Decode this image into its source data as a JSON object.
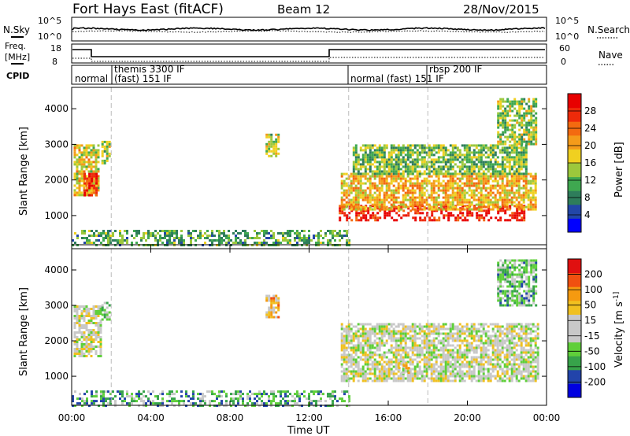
{
  "header": {
    "station": "Fort Hays East (fitACF)",
    "beam": "Beam 12",
    "date": "28/Nov/2015"
  },
  "strips": {
    "nsky_label": "N.Sky",
    "nsky_ticks": [
      "10^5",
      "10^0"
    ],
    "nsearch_label": "N.Search",
    "nsearch_ticks": [
      "10^5",
      "10^0"
    ],
    "freq_label_1": "Freq.",
    "freq_label_2": "[MHz]",
    "freq_ticks": [
      "18",
      "8"
    ],
    "nave_label": "Nave",
    "nave_ticks": [
      "60",
      "0"
    ],
    "cpid_label": "CPID",
    "cpid_segments": [
      {
        "start_h": 0.0,
        "text": "normal"
      },
      {
        "start_h": 2.0,
        "text": "themis 3300 IF"
      },
      {
        "start_h": 2.0,
        "text": "(fast) 151 IF"
      },
      {
        "start_h": 14.0,
        "text": "normal (fast) 151 IF"
      },
      {
        "start_h": 18.0,
        "text": "rbsp 200 IF"
      }
    ]
  },
  "panels": {
    "ylabel": "Slant Range [km]",
    "yticks": [
      "4000",
      "3000",
      "2000",
      "1000"
    ],
    "xlabel": "Time UT",
    "xticks": [
      "00:00",
      "04:00",
      "08:00",
      "12:00",
      "16:00",
      "20:00",
      "00:00"
    ]
  },
  "colors": {
    "power_scale": [
      "#0000ff",
      "#2246a8",
      "#2e7d5b",
      "#3fa850",
      "#9cc83c",
      "#f0d020",
      "#f49b1a",
      "#f36a10",
      "#ee2a0a",
      "#e80000"
    ],
    "velocity_scale": [
      "#0000e0",
      "#2244aa",
      "#37a34a",
      "#5fcf3a",
      "#c8c8c8",
      "#c8c8c8",
      "#f0c020",
      "#f59a10",
      "#f05010",
      "#e01010"
    ],
    "background": "#ffffff"
  },
  "chart_data": [
    {
      "type": "heatmap",
      "quantity": "Power",
      "title": "Fort Hays East (fitACF)",
      "xlabel": "Time UT",
      "ylabel": "Slant Range [km]",
      "xlim": [
        0,
        24
      ],
      "ylim": [
        180,
        4600
      ],
      "colorbar_label": "Power [dB]",
      "colorbar_ticks": [
        "28",
        "24",
        "20",
        "16",
        "12",
        "8",
        "4"
      ],
      "colorbar_range": [
        0,
        32
      ],
      "regions": [
        {
          "t0": 0.1,
          "t1": 1.4,
          "r0": 1600,
          "r1": 3000,
          "level": 0.55
        },
        {
          "t0": 0.6,
          "t1": 1.3,
          "r0": 1600,
          "r1": 2200,
          "level": 0.85
        },
        {
          "t0": 1.5,
          "t1": 1.9,
          "r0": 2500,
          "r1": 3100,
          "level": 0.45
        },
        {
          "t0": 9.8,
          "t1": 10.5,
          "r0": 2700,
          "r1": 3300,
          "level": 0.45
        },
        {
          "t0": 13.5,
          "t1": 22.9,
          "r0": 900,
          "r1": 1300,
          "level": 0.92
        },
        {
          "t0": 13.6,
          "t1": 23.5,
          "r0": 1200,
          "r1": 2200,
          "level": 0.6
        },
        {
          "t0": 14.2,
          "t1": 23.0,
          "r0": 2200,
          "r1": 3000,
          "level": 0.4
        },
        {
          "t0": 21.5,
          "t1": 23.5,
          "r0": 3000,
          "r1": 4300,
          "level": 0.45
        },
        {
          "t0": 0.0,
          "t1": 14.0,
          "r0": 200,
          "r1": 600,
          "level": 0.35
        }
      ]
    },
    {
      "type": "heatmap",
      "quantity": "Velocity",
      "xlabel": "Time UT",
      "ylabel": "Slant Range [km]",
      "xlim": [
        0,
        24
      ],
      "ylim": [
        180,
        4600
      ],
      "colorbar_label": "Velocity [m s^-1]",
      "colorbar_ticks": [
        "200",
        "100",
        "50",
        "15",
        "-15",
        "-50",
        "-100",
        "-200"
      ],
      "colorbar_range": [
        -250,
        250
      ],
      "regions": [
        {
          "t0": 0.1,
          "t1": 1.5,
          "r0": 1600,
          "r1": 3000,
          "level": 0.5
        },
        {
          "t0": 1.5,
          "t1": 1.9,
          "r0": 2600,
          "r1": 3100,
          "level": 0.4
        },
        {
          "t0": 9.8,
          "t1": 10.5,
          "r0": 2700,
          "r1": 3300,
          "level": 0.65
        },
        {
          "t0": 13.6,
          "t1": 23.6,
          "r0": 900,
          "r1": 2500,
          "level": 0.5
        },
        {
          "t0": 16.5,
          "t1": 17.0,
          "r0": 1100,
          "r1": 1400,
          "level": 0.7
        },
        {
          "t0": 21.5,
          "t1": 23.5,
          "r0": 3000,
          "r1": 4300,
          "level": 0.35
        },
        {
          "t0": 0.0,
          "t1": 14.0,
          "r0": 200,
          "r1": 600,
          "level": 0.3
        }
      ]
    }
  ]
}
